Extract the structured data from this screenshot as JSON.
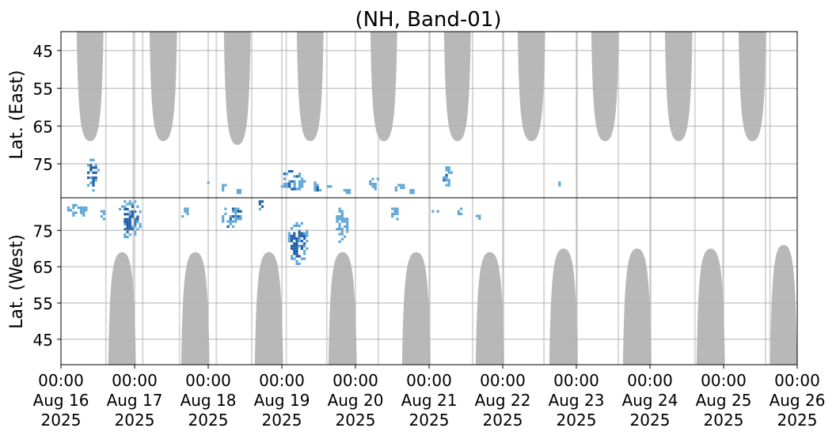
{
  "chart_data": {
    "type": "heatmap",
    "title": "(NH, Band-01)",
    "panels": [
      {
        "name": "east",
        "ylabel": "Lat. (East)",
        "ylim": [
          40,
          84
        ],
        "yticks": [
          45,
          55,
          65,
          75
        ]
      },
      {
        "name": "west",
        "ylabel": "Lat. (West)",
        "ylim": [
          38,
          84
        ],
        "yticks": [
          75,
          65,
          55,
          45
        ]
      }
    ],
    "xlim": [
      0,
      10
    ],
    "xticks": [
      {
        "day": 0,
        "lines": [
          "00:00",
          "Aug 16",
          "2025"
        ]
      },
      {
        "day": 1,
        "lines": [
          "00:00",
          "Aug 17",
          "2025"
        ]
      },
      {
        "day": 2,
        "lines": [
          "00:00",
          "Aug 18",
          "2025"
        ]
      },
      {
        "day": 3,
        "lines": [
          "00:00",
          "Aug 19",
          "2025"
        ]
      },
      {
        "day": 4,
        "lines": [
          "00:00",
          "Aug 20",
          "2025"
        ]
      },
      {
        "day": 5,
        "lines": [
          "00:00",
          "Aug 21",
          "2025"
        ]
      },
      {
        "day": 6,
        "lines": [
          "00:00",
          "Aug 22",
          "2025"
        ]
      },
      {
        "day": 7,
        "lines": [
          "00:00",
          "Aug 23",
          "2025"
        ]
      },
      {
        "day": 8,
        "lines": [
          "00:00",
          "Aug 24",
          "2025"
        ]
      },
      {
        "day": 9,
        "lines": [
          "00:00",
          "Aug 25",
          "2025"
        ]
      },
      {
        "day": 10,
        "lines": [
          "00:00",
          "Aug 26",
          "2025"
        ]
      }
    ],
    "grid": true,
    "colors": {
      "coverage": "#b8b8b8",
      "low": "#5ea8d8",
      "high": "#1f5fa8",
      "grid": "#b0b0b0"
    },
    "coverage_bands": [
      {
        "panel": "east",
        "start_day": 0.21,
        "end_day": 0.58,
        "min_lat": 69
      },
      {
        "panel": "east",
        "start_day": 1.2,
        "end_day": 1.58,
        "min_lat": 69
      },
      {
        "panel": "east",
        "start_day": 2.21,
        "end_day": 2.58,
        "min_lat": 70
      },
      {
        "panel": "east",
        "start_day": 3.2,
        "end_day": 3.57,
        "min_lat": 69
      },
      {
        "panel": "east",
        "start_day": 4.2,
        "end_day": 4.57,
        "min_lat": 69
      },
      {
        "panel": "east",
        "start_day": 5.2,
        "end_day": 5.57,
        "min_lat": 69
      },
      {
        "panel": "east",
        "start_day": 6.2,
        "end_day": 6.58,
        "min_lat": 69
      },
      {
        "panel": "east",
        "start_day": 7.2,
        "end_day": 7.58,
        "min_lat": 69
      },
      {
        "panel": "east",
        "start_day": 8.2,
        "end_day": 8.58,
        "min_lat": 69
      },
      {
        "panel": "east",
        "start_day": 9.2,
        "end_day": 9.58,
        "min_lat": 69
      },
      {
        "panel": "west",
        "start_day": 0.64,
        "end_day": 1.02,
        "min_lat": 69
      },
      {
        "panel": "west",
        "start_day": 1.63,
        "end_day": 2.02,
        "min_lat": 69
      },
      {
        "panel": "west",
        "start_day": 2.63,
        "end_day": 3.02,
        "min_lat": 69
      },
      {
        "panel": "west",
        "start_day": 3.63,
        "end_day": 4.02,
        "min_lat": 69
      },
      {
        "panel": "west",
        "start_day": 4.63,
        "end_day": 5.02,
        "min_lat": 69
      },
      {
        "panel": "west",
        "start_day": 5.63,
        "end_day": 6.02,
        "min_lat": 69
      },
      {
        "panel": "west",
        "start_day": 6.63,
        "end_day": 7.02,
        "min_lat": 70
      },
      {
        "panel": "west",
        "start_day": 7.63,
        "end_day": 8.02,
        "min_lat": 70
      },
      {
        "panel": "west",
        "start_day": 8.63,
        "end_day": 9.02,
        "min_lat": 70
      },
      {
        "panel": "west",
        "start_day": 9.63,
        "end_day": 10.0,
        "min_lat": 71
      }
    ],
    "detections": [
      {
        "panel": "east",
        "t0": 0.32,
        "t1": 0.5,
        "lat0": 73,
        "lat1": 82,
        "level": "high"
      },
      {
        "panel": "east",
        "t0": 1.95,
        "t1": 2.02,
        "lat0": 79,
        "lat1": 81,
        "level": "low"
      },
      {
        "panel": "east",
        "t0": 2.15,
        "t1": 2.22,
        "lat0": 79,
        "lat1": 82,
        "level": "low"
      },
      {
        "panel": "east",
        "t0": 2.35,
        "t1": 2.45,
        "lat0": 81,
        "lat1": 83,
        "level": "low"
      },
      {
        "panel": "east",
        "t0": 2.95,
        "t1": 3.3,
        "lat0": 76,
        "lat1": 82,
        "level": "mixed"
      },
      {
        "panel": "east",
        "t0": 3.4,
        "t1": 3.52,
        "lat0": 79,
        "lat1": 83,
        "level": "mixed"
      },
      {
        "panel": "east",
        "t0": 3.58,
        "t1": 3.66,
        "lat0": 80,
        "lat1": 82,
        "level": "low"
      },
      {
        "panel": "east",
        "t0": 3.8,
        "t1": 3.95,
        "lat0": 81,
        "lat1": 83,
        "level": "low"
      },
      {
        "panel": "east",
        "t0": 4.15,
        "t1": 4.32,
        "lat0": 78,
        "lat1": 82,
        "level": "low"
      },
      {
        "panel": "east",
        "t0": 4.5,
        "t1": 4.65,
        "lat0": 79,
        "lat1": 82,
        "level": "low"
      },
      {
        "panel": "east",
        "t0": 4.7,
        "t1": 4.78,
        "lat0": 81,
        "lat1": 83,
        "level": "low"
      },
      {
        "panel": "east",
        "t0": 5.15,
        "t1": 5.3,
        "lat0": 75,
        "lat1": 82,
        "level": "mixed"
      },
      {
        "panel": "east",
        "t0": 6.72,
        "t1": 6.76,
        "lat0": 79,
        "lat1": 81,
        "level": "low"
      },
      {
        "panel": "west",
        "t0": 0.05,
        "t1": 0.35,
        "lat0": 79,
        "lat1": 83,
        "level": "low"
      },
      {
        "panel": "west",
        "t0": 0.5,
        "t1": 0.6,
        "lat0": 78,
        "lat1": 82,
        "level": "low"
      },
      {
        "panel": "west",
        "t0": 0.75,
        "t1": 1.08,
        "lat0": 73,
        "lat1": 84,
        "level": "high"
      },
      {
        "panel": "west",
        "t0": 1.6,
        "t1": 1.72,
        "lat0": 79,
        "lat1": 82,
        "level": "low"
      },
      {
        "panel": "west",
        "t0": 2.15,
        "t1": 2.45,
        "lat0": 76,
        "lat1": 82,
        "level": "mixed"
      },
      {
        "panel": "west",
        "t0": 2.65,
        "t1": 2.75,
        "lat0": 81,
        "lat1": 84,
        "level": "high"
      },
      {
        "panel": "west",
        "t0": 3.05,
        "t1": 3.35,
        "lat0": 66,
        "lat1": 78,
        "level": "high"
      },
      {
        "panel": "west",
        "t0": 3.7,
        "t1": 3.88,
        "lat0": 72,
        "lat1": 82,
        "level": "low"
      },
      {
        "panel": "west",
        "t0": 4.45,
        "t1": 4.58,
        "lat0": 78,
        "lat1": 82,
        "level": "low"
      },
      {
        "panel": "west",
        "t0": 5.0,
        "t1": 5.12,
        "lat0": 80,
        "lat1": 82,
        "level": "low"
      },
      {
        "panel": "west",
        "t0": 5.35,
        "t1": 5.45,
        "lat0": 79,
        "lat1": 82,
        "level": "low"
      },
      {
        "panel": "west",
        "t0": 5.6,
        "t1": 5.7,
        "lat0": 78,
        "lat1": 80,
        "level": "low"
      }
    ],
    "vertical_stripes": [
      0.6,
      0.97,
      1.1,
      1.6,
      2.1,
      2.58,
      3.05,
      3.6,
      4.3,
      5.0,
      5.58,
      6.0,
      6.55,
      7.0,
      7.56,
      8.0,
      8.6,
      8.98,
      9.56,
      9.62
    ]
  }
}
